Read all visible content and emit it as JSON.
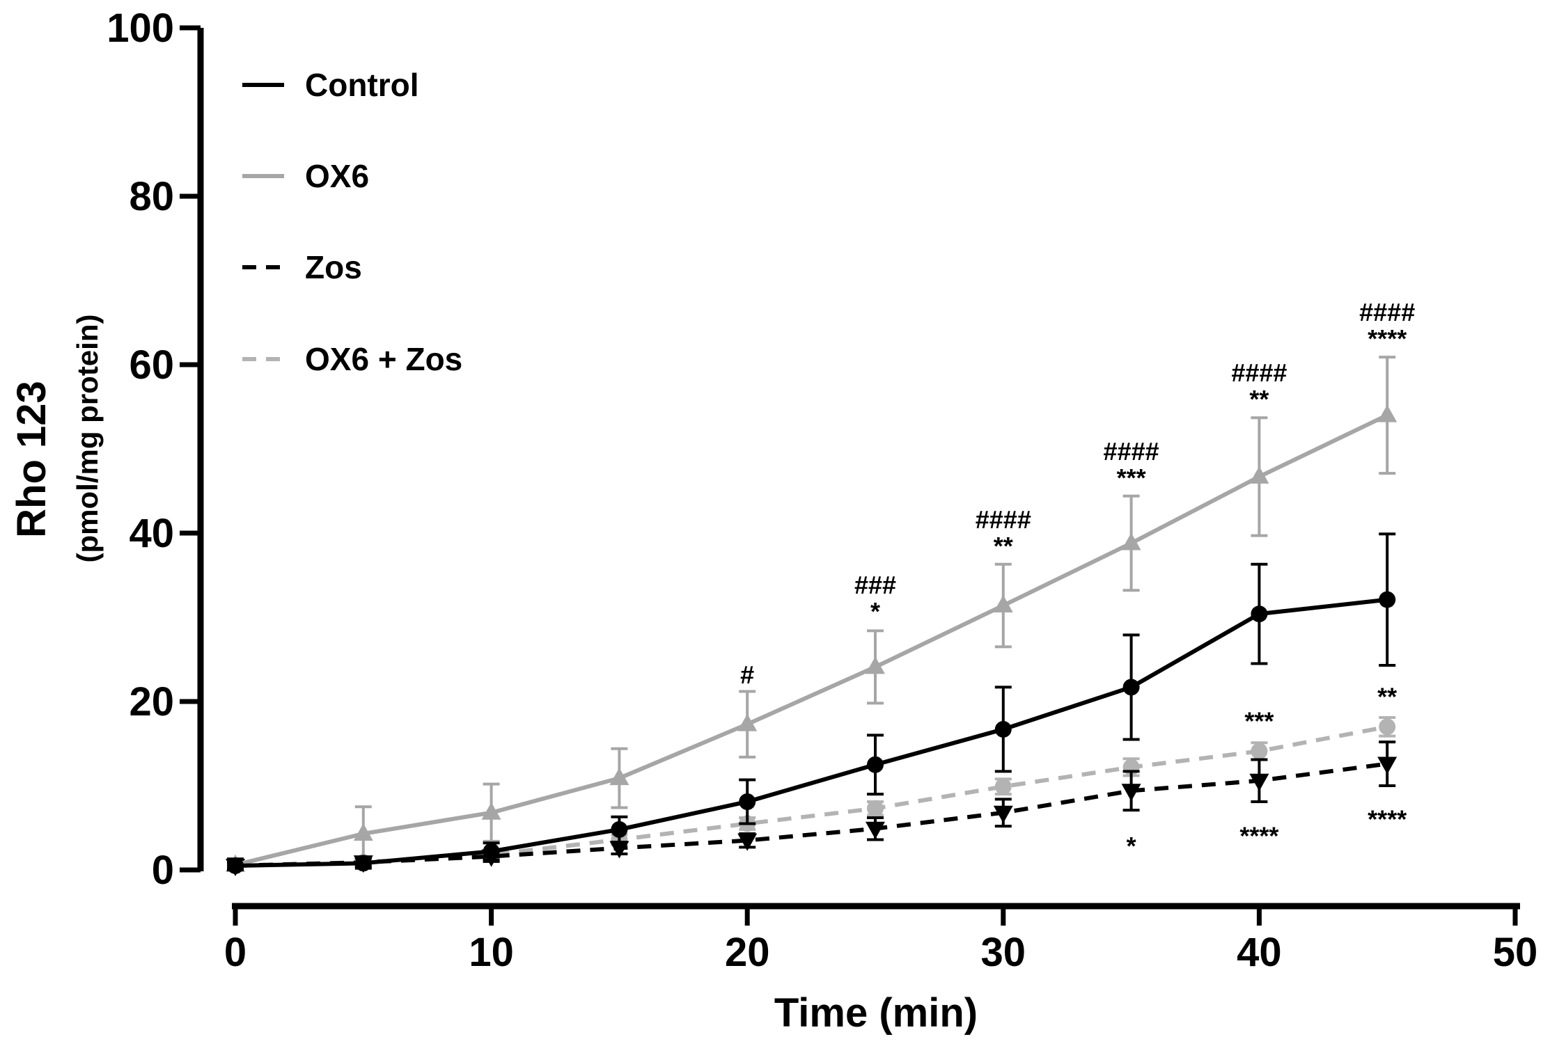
{
  "chart_data": {
    "type": "line",
    "title": "",
    "xlabel": "Time (min)",
    "ylabel": "Rho 123",
    "ylabel_sub": "(pmol/mg protein)",
    "xlim": [
      0,
      50
    ],
    "ylim": [
      0,
      100
    ],
    "xticks": [
      0,
      10,
      20,
      30,
      40,
      50
    ],
    "yticks": [
      0,
      20,
      40,
      60,
      80,
      100
    ],
    "grid": false,
    "legend_position": "top-left",
    "x": [
      0,
      5,
      10,
      15,
      20,
      25,
      30,
      35,
      40,
      45
    ],
    "series": [
      {
        "name": "Control",
        "color": "#000000",
        "dashed": false,
        "marker": "circle",
        "values": [
          0.5,
          0.8,
          2.2,
          4.8,
          8.1,
          12.5,
          16.7,
          21.7,
          30.4,
          32.1
        ],
        "errors": [
          0.8,
          0.6,
          1.0,
          1.5,
          2.6,
          3.5,
          5.0,
          6.2,
          5.9,
          7.8
        ]
      },
      {
        "name": "OX6",
        "color": "#a6a6a6",
        "dashed": false,
        "marker": "triangle-up",
        "values": [
          0.6,
          4.3,
          6.8,
          10.9,
          17.3,
          24.1,
          31.4,
          38.8,
          46.7,
          54.0
        ],
        "errors": [
          0.7,
          3.2,
          3.4,
          3.5,
          3.9,
          4.3,
          4.9,
          5.6,
          7.0,
          6.9
        ]
      },
      {
        "name": "Zos",
        "color": "#000000",
        "dashed": true,
        "marker": "triangle-down",
        "values": [
          0.5,
          0.9,
          1.6,
          2.6,
          3.5,
          4.9,
          6.8,
          9.4,
          10.6,
          12.6
        ],
        "errors": [
          0.4,
          0.5,
          0.6,
          0.7,
          0.8,
          1.3,
          1.6,
          2.3,
          2.5,
          2.6
        ]
      },
      {
        "name": "OX6 + Zos",
        "color": "#b3b3b3",
        "dashed": true,
        "marker": "circle",
        "values": [
          0.5,
          0.9,
          1.8,
          3.6,
          5.5,
          7.3,
          9.9,
          12.2,
          14.1,
          17.0
        ],
        "errors": [
          0.3,
          0.4,
          0.5,
          0.6,
          0.7,
          0.8,
          0.9,
          1.0,
          1.0,
          1.1
        ]
      }
    ],
    "annotations": [
      {
        "x": 20,
        "y_anchor": 21.0,
        "text": "#",
        "stack": 0
      },
      {
        "x": 25,
        "y_anchor": 28.5,
        "text": "###",
        "stack": 1
      },
      {
        "x": 25,
        "y_anchor": 28.5,
        "text": "*",
        "stack": 0
      },
      {
        "x": 30,
        "y_anchor": 36.3,
        "text": "####",
        "stack": 1
      },
      {
        "x": 30,
        "y_anchor": 36.3,
        "text": "**",
        "stack": 0
      },
      {
        "x": 35,
        "y_anchor": 44.4,
        "text": "####",
        "stack": 1
      },
      {
        "x": 35,
        "y_anchor": 44.4,
        "text": "***",
        "stack": 0
      },
      {
        "x": 40,
        "y_anchor": 53.7,
        "text": "####",
        "stack": 1
      },
      {
        "x": 40,
        "y_anchor": 53.7,
        "text": "**",
        "stack": 0
      },
      {
        "x": 45,
        "y_anchor": 60.9,
        "text": "####",
        "stack": 1
      },
      {
        "x": 45,
        "y_anchor": 60.9,
        "text": "****",
        "stack": 0
      },
      {
        "x": 40,
        "y_anchor": 15.5,
        "text": "***",
        "stack": 0
      },
      {
        "x": 45,
        "y_anchor": 18.4,
        "text": "**",
        "stack": 0
      },
      {
        "x": 35,
        "y_anchor": 6.6,
        "text": "*",
        "stack": -1
      },
      {
        "x": 40,
        "y_anchor": 7.8,
        "text": "****",
        "stack": -1
      },
      {
        "x": 45,
        "y_anchor": 9.8,
        "text": "****",
        "stack": -1
      }
    ]
  }
}
